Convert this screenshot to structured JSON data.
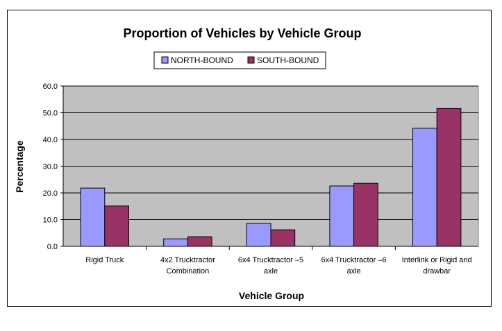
{
  "chart_data": {
    "type": "bar",
    "title": "Proportion of Vehicles by Vehicle Group",
    "xlabel": "Vehicle Group",
    "ylabel": "Percentage",
    "ylim": [
      0,
      60
    ],
    "yticks": [
      "0.0",
      "10.0",
      "20.0",
      "30.0",
      "40.0",
      "50.0",
      "60.0"
    ],
    "grid": true,
    "legend_placement": "top",
    "categories": [
      [
        "Rigid Truck"
      ],
      [
        "4x2 Trucktractor",
        "Combination"
      ],
      [
        "6x4 Trucktractor –5",
        "axle"
      ],
      [
        "6x4 Trucktractor –6",
        "axle"
      ],
      [
        "Interlink or Rigid and",
        "drawbar"
      ]
    ],
    "series": [
      {
        "name": "NORTH-BOUND",
        "color": "#9999ff",
        "values": [
          21.8,
          2.8,
          8.6,
          22.6,
          44.2
        ]
      },
      {
        "name": "SOUTH-BOUND",
        "color": "#993366",
        "values": [
          15.1,
          3.6,
          6.2,
          23.6,
          51.6
        ]
      }
    ],
    "plot_background": "#c0c0c0"
  }
}
